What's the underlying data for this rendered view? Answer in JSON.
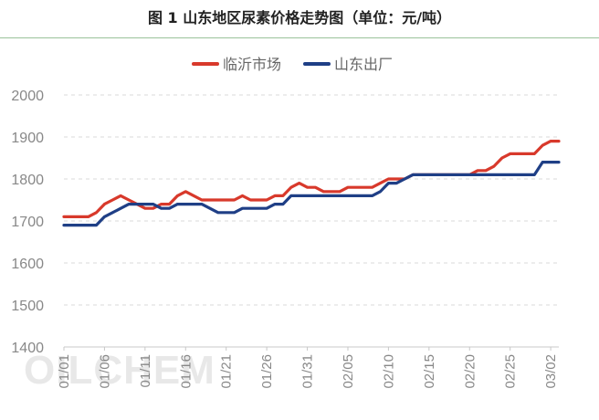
{
  "title": "图 1 山东地区尿素价格走势图（单位：元/吨）",
  "watermark": "OILCHEM",
  "chart_data": {
    "type": "line",
    "title": "图 1 山东地区尿素价格走势图（单位：元/吨）",
    "xlabel": "",
    "ylabel": "",
    "ylim": [
      1400,
      2000
    ],
    "yticks": [
      1400,
      1500,
      1600,
      1700,
      1800,
      1900,
      2000
    ],
    "grid": "horizontal-dashed",
    "legend_position": "top",
    "x_tick_labels": [
      "01/01",
      "01/06",
      "01/11",
      "01/16",
      "01/21",
      "01/26",
      "01/31",
      "02/05",
      "02/10",
      "02/15",
      "02/20",
      "02/25",
      "03/02"
    ],
    "x_tick_every": 5,
    "series": [
      {
        "name": "临沂市场",
        "color": "#d8392b",
        "values": [
          1710,
          1710,
          1710,
          1710,
          1720,
          1740,
          1750,
          1760,
          1750,
          1740,
          1730,
          1730,
          1740,
          1740,
          1760,
          1770,
          1760,
          1750,
          1750,
          1750,
          1750,
          1750,
          1760,
          1750,
          1750,
          1750,
          1760,
          1760,
          1780,
          1790,
          1780,
          1780,
          1770,
          1770,
          1770,
          1780,
          1780,
          1780,
          1780,
          1790,
          1800,
          1800,
          1800,
          1810,
          1810,
          1810,
          1810,
          1810,
          1810,
          1810,
          1810,
          1820,
          1820,
          1830,
          1850,
          1860,
          1860,
          1860,
          1860,
          1880,
          1890,
          1890
        ]
      },
      {
        "name": "山东出厂",
        "color": "#1f3f86",
        "values": [
          1690,
          1690,
          1690,
          1690,
          1690,
          1710,
          1720,
          1730,
          1740,
          1740,
          1740,
          1740,
          1730,
          1730,
          1740,
          1740,
          1740,
          1740,
          1730,
          1720,
          1720,
          1720,
          1730,
          1730,
          1730,
          1730,
          1740,
          1740,
          1760,
          1760,
          1760,
          1760,
          1760,
          1760,
          1760,
          1760,
          1760,
          1760,
          1760,
          1770,
          1790,
          1790,
          1800,
          1810,
          1810,
          1810,
          1810,
          1810,
          1810,
          1810,
          1810,
          1810,
          1810,
          1810,
          1810,
          1810,
          1810,
          1810,
          1810,
          1840,
          1840,
          1840
        ]
      }
    ]
  }
}
